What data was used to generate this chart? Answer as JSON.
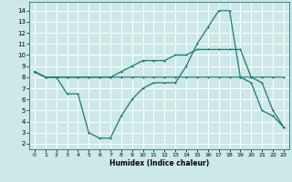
{
  "xlabel": "Humidex (Indice chaleur)",
  "bg_color": "#cce8e8",
  "grid_color": "#ffffff",
  "line_color": "#1a7a6e",
  "x_ticks": [
    0,
    1,
    2,
    3,
    4,
    5,
    6,
    7,
    8,
    9,
    10,
    11,
    12,
    13,
    14,
    15,
    16,
    17,
    18,
    19,
    20,
    21,
    22,
    23
  ],
  "y_ticks": [
    2,
    3,
    4,
    5,
    6,
    7,
    8,
    9,
    10,
    11,
    12,
    13,
    14
  ],
  "ylim": [
    1.5,
    14.8
  ],
  "xlim": [
    -0.5,
    23.5
  ],
  "line1_x": [
    0,
    1,
    2,
    3,
    4,
    5,
    6,
    7,
    8,
    9,
    10,
    11,
    12,
    13,
    14,
    15,
    16,
    17,
    18,
    19,
    20,
    21,
    22,
    23
  ],
  "line1_y": [
    8.5,
    8.0,
    8.0,
    8.0,
    8.0,
    8.0,
    8.0,
    8.0,
    8.0,
    8.0,
    8.0,
    8.0,
    8.0,
    8.0,
    8.0,
    8.0,
    8.0,
    8.0,
    8.0,
    8.0,
    8.0,
    8.0,
    8.0,
    8.0
  ],
  "line2_x": [
    0,
    1,
    2,
    3,
    4,
    5,
    6,
    7,
    8,
    9,
    10,
    11,
    12,
    13,
    14,
    15,
    16,
    17,
    18,
    19,
    20,
    21,
    22,
    23
  ],
  "line2_y": [
    8.5,
    8.0,
    8.0,
    6.5,
    6.5,
    3.0,
    2.5,
    2.5,
    4.5,
    6.0,
    7.0,
    7.5,
    7.5,
    7.5,
    9.0,
    11.0,
    12.5,
    14.0,
    14.0,
    8.0,
    7.5,
    5.0,
    4.5,
    3.5
  ],
  "line3_x": [
    0,
    1,
    2,
    3,
    4,
    5,
    6,
    7,
    8,
    9,
    10,
    11,
    12,
    13,
    14,
    15,
    16,
    17,
    18,
    19,
    20,
    21,
    22,
    23
  ],
  "line3_y": [
    8.5,
    8.0,
    8.0,
    8.0,
    8.0,
    8.0,
    8.0,
    8.0,
    8.5,
    9.0,
    9.5,
    9.5,
    9.5,
    10.0,
    10.0,
    10.5,
    10.5,
    10.5,
    10.5,
    10.5,
    8.0,
    7.5,
    5.0,
    3.5
  ]
}
